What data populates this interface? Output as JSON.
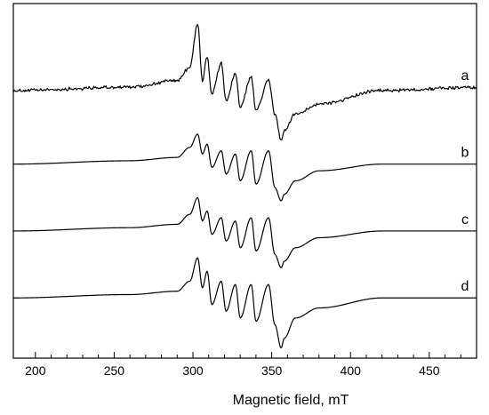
{
  "chart_data": {
    "type": "line",
    "xlabel": "Magnetic field, mT",
    "ylabel": "",
    "xlim": [
      186,
      480
    ],
    "x_ticks": [
      200,
      250,
      300,
      350,
      400,
      450
    ],
    "y_ticks_visible": false,
    "grid": false,
    "legend": "inline labels at right of each trace",
    "series": [
      {
        "name": "a",
        "offset": 0.2,
        "amplitude": 0.2,
        "noisy": true,
        "baseline_left": 0.0,
        "baseline_right": 0.04,
        "points": [
          [
            186,
            0.02
          ],
          [
            260,
            0.03
          ],
          [
            290,
            0.05
          ],
          [
            298,
            0.09
          ],
          [
            303,
            0.22
          ],
          [
            306,
            0.05
          ],
          [
            309,
            0.12
          ],
          [
            312,
            0.01
          ],
          [
            318,
            0.1
          ],
          [
            321,
            -0.01
          ],
          [
            327,
            0.07
          ],
          [
            330,
            -0.03
          ],
          [
            337,
            0.06
          ],
          [
            340,
            -0.04
          ],
          [
            348,
            0.05
          ],
          [
            352,
            -0.05
          ],
          [
            356,
            -0.13
          ],
          [
            358,
            -0.1
          ],
          [
            365,
            -0.05
          ],
          [
            380,
            -0.02
          ],
          [
            420,
            0.02
          ],
          [
            480,
            0.03
          ]
        ]
      },
      {
        "name": "b",
        "offset": 0.0,
        "amplitude": 0.2,
        "noisy": false,
        "points": [
          [
            186,
            0.0
          ],
          [
            260,
            0.01
          ],
          [
            290,
            0.02
          ],
          [
            298,
            0.05
          ],
          [
            303,
            0.09
          ],
          [
            306,
            0.03
          ],
          [
            309,
            0.06
          ],
          [
            312,
            -0.01
          ],
          [
            318,
            0.04
          ],
          [
            321,
            -0.03
          ],
          [
            327,
            0.03
          ],
          [
            330,
            -0.05
          ],
          [
            337,
            0.04
          ],
          [
            340,
            -0.06
          ],
          [
            348,
            0.04
          ],
          [
            352,
            -0.07
          ],
          [
            356,
            -0.11
          ],
          [
            358,
            -0.09
          ],
          [
            365,
            -0.05
          ],
          [
            380,
            -0.02
          ],
          [
            420,
            0.0
          ],
          [
            480,
            0.0
          ]
        ]
      },
      {
        "name": "c",
        "offset": -0.2,
        "amplitude": 0.2,
        "noisy": false,
        "points": [
          [
            186,
            0.0
          ],
          [
            260,
            0.01
          ],
          [
            290,
            0.02
          ],
          [
            298,
            0.05
          ],
          [
            303,
            0.1
          ],
          [
            306,
            0.03
          ],
          [
            309,
            0.06
          ],
          [
            312,
            -0.01
          ],
          [
            318,
            0.04
          ],
          [
            321,
            -0.03
          ],
          [
            327,
            0.03
          ],
          [
            330,
            -0.05
          ],
          [
            337,
            0.04
          ],
          [
            340,
            -0.06
          ],
          [
            348,
            0.04
          ],
          [
            352,
            -0.07
          ],
          [
            356,
            -0.11
          ],
          [
            358,
            -0.09
          ],
          [
            365,
            -0.05
          ],
          [
            380,
            -0.02
          ],
          [
            420,
            0.0
          ],
          [
            480,
            0.0
          ]
        ]
      },
      {
        "name": "d",
        "offset": -0.4,
        "amplitude": 0.2,
        "noisy": false,
        "points": [
          [
            186,
            0.0
          ],
          [
            260,
            0.01
          ],
          [
            290,
            0.02
          ],
          [
            298,
            0.05
          ],
          [
            303,
            0.12
          ],
          [
            306,
            0.03
          ],
          [
            309,
            0.08
          ],
          [
            312,
            -0.02
          ],
          [
            318,
            0.05
          ],
          [
            321,
            -0.04
          ],
          [
            327,
            0.04
          ],
          [
            330,
            -0.06
          ],
          [
            337,
            0.04
          ],
          [
            340,
            -0.07
          ],
          [
            348,
            0.04
          ],
          [
            352,
            -0.08
          ],
          [
            356,
            -0.15
          ],
          [
            358,
            -0.12
          ],
          [
            365,
            -0.06
          ],
          [
            380,
            -0.03
          ],
          [
            420,
            0.0
          ],
          [
            480,
            0.0
          ]
        ]
      }
    ]
  }
}
